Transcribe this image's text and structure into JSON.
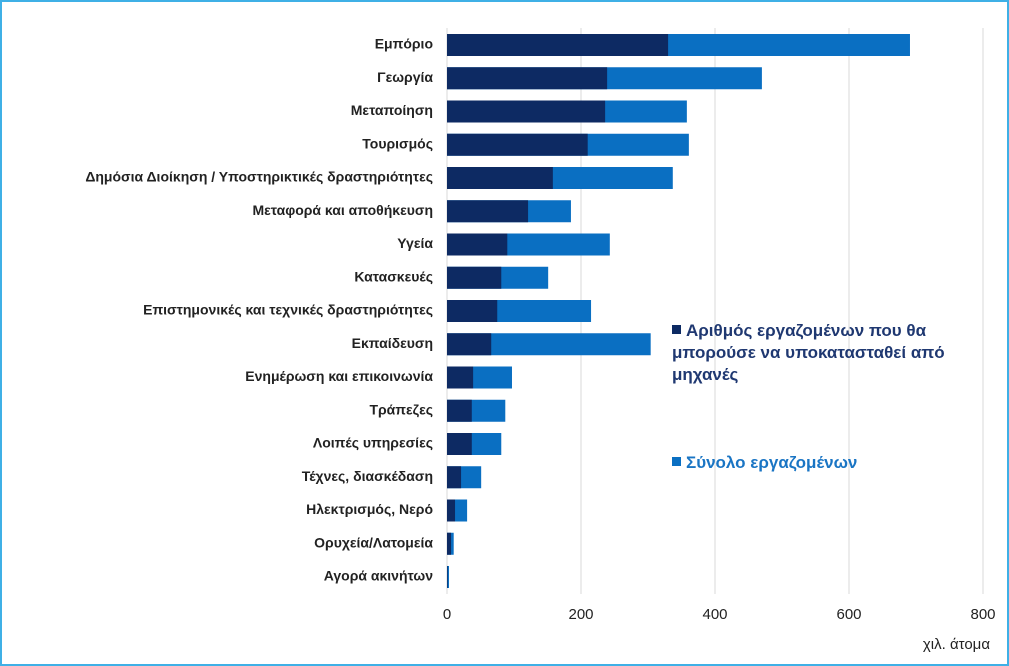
{
  "chart_data": {
    "type": "bar",
    "orientation": "horizontal",
    "categories": [
      "Εμπόριο",
      "Γεωργία",
      "Μεταποίηση",
      "Τουρισμός",
      "Δημόσια Διοίκηση / Υποστηρικτικές δραστηριότητες",
      "Μεταφορά και αποθήκευση",
      "Υγεία",
      "Κατασκευές",
      "Επιστημονικές και τεχνικές δραστηριότητες",
      "Εκπαίδευση",
      "Ενημέρωση και επικοινωνία",
      "Τράπεζες",
      "Λοιπές υπηρεσίες",
      "Τέχνες, διασκέδαση",
      "Ηλεκτρισμός, Νερό",
      "Ορυχεία/Λατομεία",
      "Αγορά ακινήτων"
    ],
    "series": [
      {
        "name": "Αριθμός εργαζομένων που θα μπορούσε να υποκατασταθεί από μηχανές",
        "color": "#0d2a63",
        "text_color": "#1f3871",
        "values": [
          330,
          239,
          236,
          210,
          158,
          121,
          90,
          81,
          75,
          66,
          39,
          37,
          37,
          21,
          12,
          6,
          1
        ]
      },
      {
        "name": "Σύνολο εργαζομένων",
        "color": "#0a6fc2",
        "text_color": "#1a75c4",
        "values": [
          691,
          470,
          358,
          361,
          337,
          185,
          243,
          151,
          215,
          304,
          97,
          87,
          81,
          51,
          30,
          10,
          3
        ]
      }
    ],
    "xlim": [
      0,
      800
    ],
    "xticks": [
      0,
      200,
      400,
      600,
      800
    ],
    "xlabel": "χιλ. άτομα",
    "grid": true
  }
}
